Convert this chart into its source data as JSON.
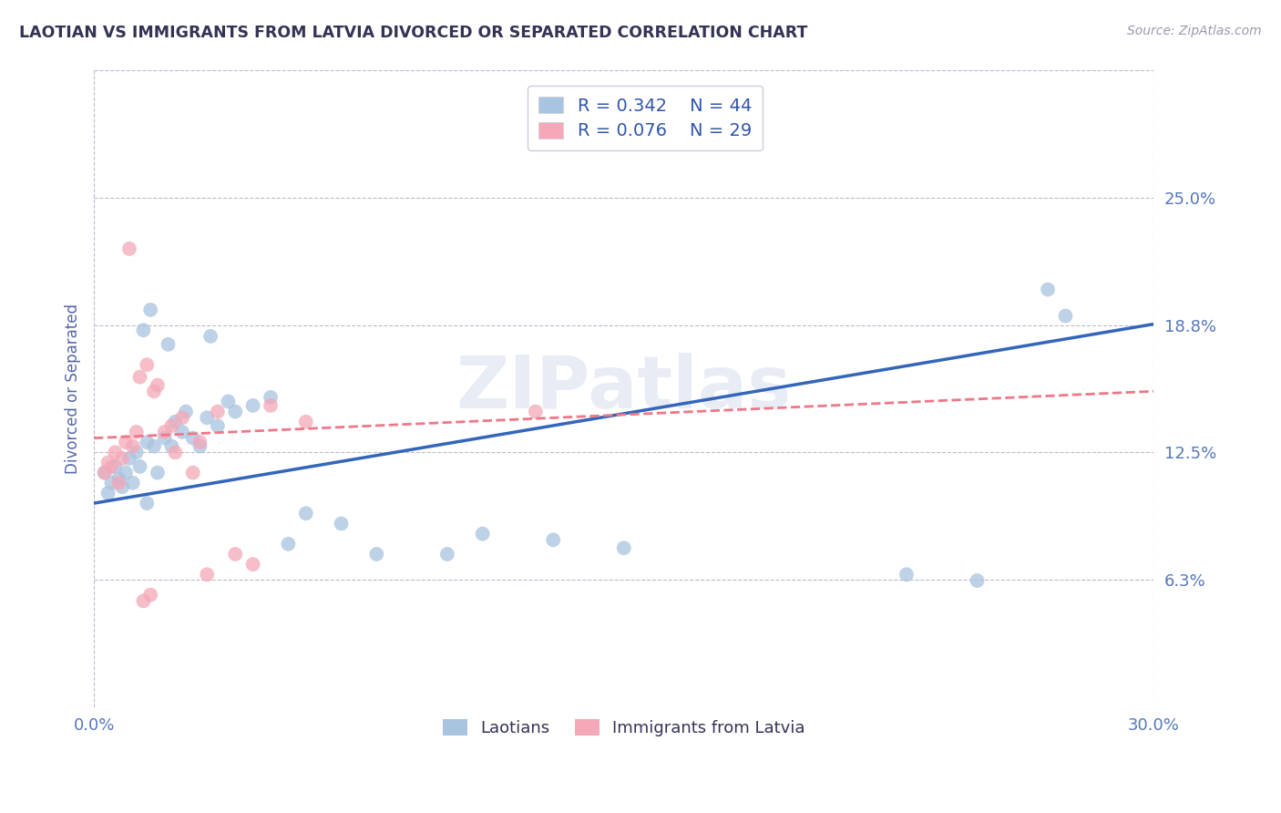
{
  "title": "LAOTIAN VS IMMIGRANTS FROM LATVIA DIVORCED OR SEPARATED CORRELATION CHART",
  "source": "Source: ZipAtlas.com",
  "ylabel": "Divorced or Separated",
  "xlim": [
    0.0,
    30.0
  ],
  "ylim": [
    0.0,
    31.25
  ],
  "xticks": [
    0.0,
    30.0
  ],
  "xtick_labels": [
    "0.0%",
    "30.0%"
  ],
  "yticks": [
    6.25,
    12.5,
    18.75,
    25.0
  ],
  "ytick_labels": [
    "6.3%",
    "12.5%",
    "18.8%",
    "25.0%"
  ],
  "watermark": "ZIPatlas",
  "legend_r1": "R = 0.342",
  "legend_n1": "N = 44",
  "legend_r2": "R = 0.076",
  "legend_n2": "N = 29",
  "blue_color": "#A8C4E0",
  "pink_color": "#F4A8B8",
  "blue_line_color": "#3366BB",
  "pink_line_color": "#EE7788",
  "blue_line_x0": 0.0,
  "blue_line_y0": 10.0,
  "blue_line_x1": 30.0,
  "blue_line_y1": 18.8,
  "pink_line_x0": 0.0,
  "pink_line_y0": 13.2,
  "pink_line_x1": 30.0,
  "pink_line_y1": 15.5,
  "laotians_x": [
    0.3,
    0.4,
    0.5,
    0.6,
    0.7,
    0.8,
    0.9,
    1.0,
    1.1,
    1.2,
    1.3,
    1.5,
    1.5,
    1.7,
    1.8,
    2.0,
    2.2,
    2.3,
    2.5,
    2.6,
    2.8,
    3.0,
    3.2,
    3.5,
    3.8,
    4.0,
    4.5,
    5.0,
    5.5,
    6.0,
    7.0,
    8.0,
    10.0,
    11.0,
    13.0,
    15.0,
    23.0,
    25.0,
    27.0,
    27.5,
    1.4,
    1.6,
    2.1,
    3.3
  ],
  "laotians_y": [
    11.5,
    10.5,
    11.0,
    11.8,
    11.2,
    10.8,
    11.5,
    12.2,
    11.0,
    12.5,
    11.8,
    13.0,
    10.0,
    12.8,
    11.5,
    13.2,
    12.8,
    14.0,
    13.5,
    14.5,
    13.2,
    12.8,
    14.2,
    13.8,
    15.0,
    14.5,
    14.8,
    15.2,
    8.0,
    9.5,
    9.0,
    7.5,
    7.5,
    8.5,
    8.2,
    7.8,
    6.5,
    6.2,
    20.5,
    19.2,
    18.5,
    19.5,
    17.8,
    18.2
  ],
  "latvia_x": [
    0.3,
    0.4,
    0.5,
    0.6,
    0.7,
    0.8,
    0.9,
    1.0,
    1.1,
    1.2,
    1.3,
    1.5,
    1.7,
    1.8,
    2.0,
    2.2,
    2.5,
    2.8,
    3.0,
    3.5,
    4.0,
    4.5,
    5.0,
    6.0,
    3.2,
    2.3,
    1.6,
    1.4,
    12.5
  ],
  "latvia_y": [
    11.5,
    12.0,
    11.8,
    12.5,
    11.0,
    12.2,
    13.0,
    22.5,
    12.8,
    13.5,
    16.2,
    16.8,
    15.5,
    15.8,
    13.5,
    13.8,
    14.2,
    11.5,
    13.0,
    14.5,
    7.5,
    7.0,
    14.8,
    14.0,
    6.5,
    12.5,
    5.5,
    5.2,
    14.5
  ],
  "grid_color": "#BBBBCC",
  "bg_color": "#FFFFFF",
  "title_color": "#333355",
  "axis_label_color": "#5566AA",
  "tick_label_color": "#5577BB",
  "source_color": "#999AAA"
}
